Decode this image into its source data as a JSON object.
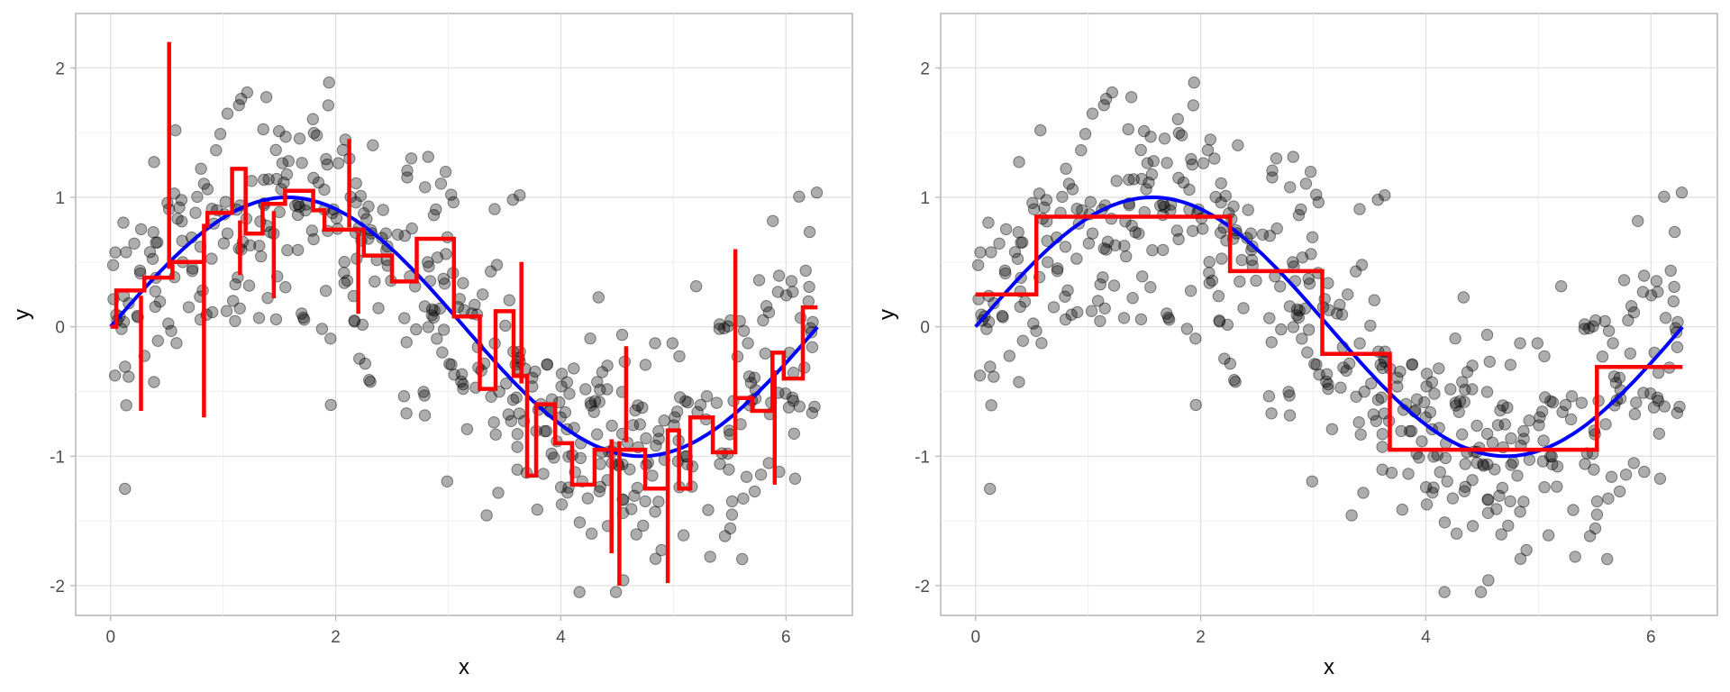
{
  "chart_data": [
    {
      "type": "scatter",
      "title": "",
      "xlabel": "x",
      "ylabel": "y",
      "xlim": [
        -0.31,
        6.59
      ],
      "ylim": [
        -2.23,
        2.42
      ],
      "xticks": [
        0,
        2,
        4,
        6
      ],
      "yticks": [
        2,
        1,
        0,
        -1,
        -2
      ],
      "xtick_labels": [
        "0",
        "2",
        "4",
        "6"
      ],
      "ytick_labels": [
        "2",
        "1",
        "0",
        "-1",
        "-2"
      ],
      "grid": true,
      "series": [
        {
          "kind": "points",
          "color": "#000000",
          "opacity": 0.35,
          "n": 500,
          "x_range": [
            0,
            6.28
          ],
          "shape": "sin(x) + noise",
          "noise_sd": 0.5
        },
        {
          "kind": "line",
          "color": "#0000ff",
          "x_range": [
            0,
            6.28
          ],
          "shape": "sin(x)"
        },
        {
          "kind": "step",
          "color": "#ff0000",
          "x": [
            0.0,
            0.05,
            0.28,
            0.3,
            0.52,
            0.55,
            0.78,
            0.83,
            0.86,
            1.04,
            1.08,
            1.14,
            1.2,
            1.25,
            1.35,
            1.45,
            1.55,
            1.7,
            1.8,
            1.9,
            2.15,
            2.25,
            2.38,
            2.5,
            2.62,
            2.72,
            2.85,
            3.05,
            3.12,
            3.28,
            3.42,
            3.58,
            3.7,
            3.78,
            3.95,
            4.1,
            4.3,
            4.55,
            4.75,
            4.95,
            5.05,
            5.15,
            5.35,
            5.55,
            5.7,
            5.88,
            5.98,
            6.15,
            6.28
          ],
          "y": [
            0.0,
            0.28,
            0.28,
            0.38,
            0.38,
            0.5,
            0.5,
            0.78,
            0.88,
            0.88,
            1.22,
            1.22,
            0.72,
            0.72,
            0.95,
            0.95,
            1.05,
            1.05,
            0.9,
            0.75,
            0.75,
            0.55,
            0.55,
            0.35,
            0.35,
            0.68,
            0.68,
            0.08,
            0.08,
            -0.48,
            0.12,
            -0.38,
            -1.15,
            -0.6,
            -0.9,
            -1.22,
            -0.95,
            -0.95,
            -1.25,
            -0.8,
            -1.25,
            -0.7,
            -0.97,
            -0.55,
            -0.65,
            -0.2,
            -0.4,
            0.15,
            0.15
          ]
        },
        {
          "kind": "spikes",
          "color": "#ff0000",
          "x": [
            0.27,
            0.52,
            0.83,
            1.15,
            1.45,
            2.12,
            2.2,
            3.65,
            4.45,
            4.52,
            4.58,
            4.95,
            5.55,
            5.9
          ],
          "y": [
            -0.65,
            2.2,
            -0.7,
            0.4,
            0.22,
            1.45,
            0.1,
            0.5,
            -1.75,
            -2.0,
            -0.15,
            -1.98,
            0.6,
            -1.22
          ]
        }
      ]
    },
    {
      "type": "scatter",
      "title": "",
      "xlabel": "x",
      "ylabel": "y",
      "xlim": [
        -0.31,
        6.59
      ],
      "ylim": [
        -2.23,
        2.42
      ],
      "xticks": [
        0,
        2,
        4,
        6
      ],
      "yticks": [
        2,
        1,
        0,
        -1,
        -2
      ],
      "xtick_labels": [
        "0",
        "2",
        "4",
        "6"
      ],
      "ytick_labels": [
        "2",
        "1",
        "0",
        "-1",
        "-2"
      ],
      "grid": true,
      "series": [
        {
          "kind": "points",
          "color": "#000000",
          "opacity": 0.35,
          "n": 500,
          "x_range": [
            0,
            6.28
          ],
          "shape": "sin(x) + noise",
          "noise_sd": 0.5
        },
        {
          "kind": "line",
          "color": "#0000ff",
          "x_range": [
            0,
            6.28
          ],
          "shape": "sin(x)"
        },
        {
          "kind": "step",
          "color": "#ff0000",
          "x": [
            0.0,
            0.54,
            2.26,
            3.08,
            3.68,
            5.52,
            6.28
          ],
          "y": [
            0.25,
            0.85,
            0.43,
            -0.21,
            -0.95,
            -0.31,
            -0.31
          ]
        }
      ]
    }
  ]
}
